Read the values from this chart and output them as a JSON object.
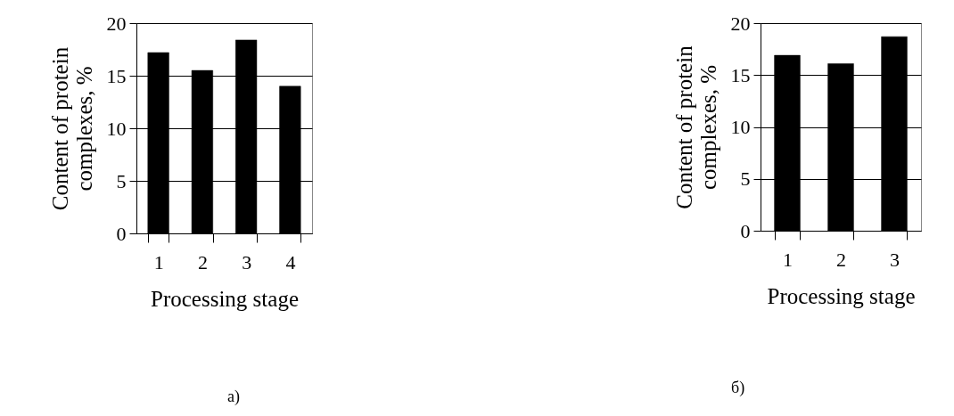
{
  "chart_data": [
    {
      "type": "bar",
      "categories": [
        "1",
        "2",
        "3",
        "4"
      ],
      "values": [
        17.2,
        15.5,
        18.4,
        14.0
      ],
      "color": "#000000",
      "xlabel": "Processing stage",
      "ylabel": "Content of protein complexes, %",
      "ylim": [
        0,
        20
      ],
      "yticks": [
        0,
        5,
        10,
        15,
        20
      ],
      "grid": "y",
      "annotations": [
        "а)"
      ]
    },
    {
      "type": "bar",
      "categories": [
        "1",
        "2",
        "3"
      ],
      "values": [
        16.9,
        16.1,
        18.7
      ],
      "color": "#000000",
      "xlabel": "Processing stage",
      "ylabel": "Content of protein complexes, %",
      "ylim": [
        0,
        20
      ],
      "yticks": [
        0,
        5,
        10,
        15,
        20
      ],
      "grid": "y",
      "annotations": [
        "б)"
      ]
    }
  ]
}
